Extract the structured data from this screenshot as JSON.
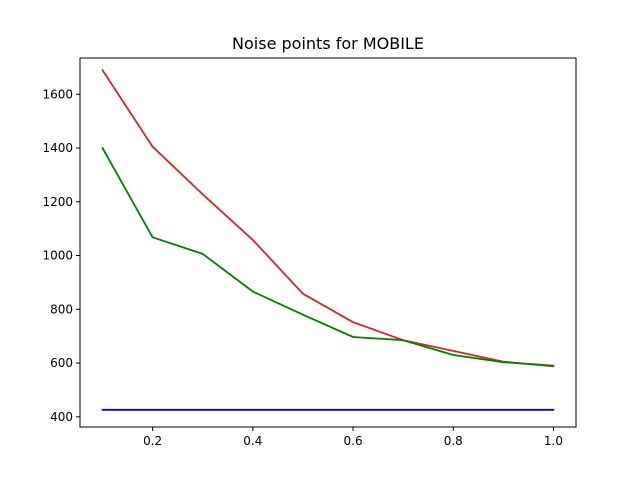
{
  "chart_data": {
    "type": "line",
    "title": "Noise points for MOBILE",
    "xlabel": "",
    "ylabel": "",
    "xlim": [
      0.055,
      1.045
    ],
    "ylim": [
      362,
      1735
    ],
    "xticks": [
      0.2,
      0.4,
      0.6,
      0.8,
      1.0
    ],
    "xtick_labels": [
      "0.2",
      "0.4",
      "0.6",
      "0.8",
      "1.0"
    ],
    "yticks": [
      400,
      600,
      800,
      1000,
      1200,
      1400,
      1600
    ],
    "ytick_labels": [
      "400",
      "600",
      "800",
      "1000",
      "1200",
      "1400",
      "1600"
    ],
    "grid": false,
    "x": [
      0.1,
      0.2,
      0.3,
      0.4,
      0.5,
      0.6,
      0.7,
      0.8,
      0.9,
      1.0
    ],
    "series": [
      {
        "color": "#d62728",
        "values": [
          1690,
          1405,
          1228,
          1058,
          858,
          752,
          685,
          645,
          605,
          588
        ]
      },
      {
        "color": "#008000",
        "values": [
          1400,
          1068,
          1006,
          866,
          780,
          697,
          685,
          630,
          603,
          590
        ]
      },
      {
        "color": "#0000cc",
        "values": [
          426,
          426,
          426,
          426,
          426,
          426,
          426,
          426,
          426,
          426
        ]
      }
    ]
  }
}
